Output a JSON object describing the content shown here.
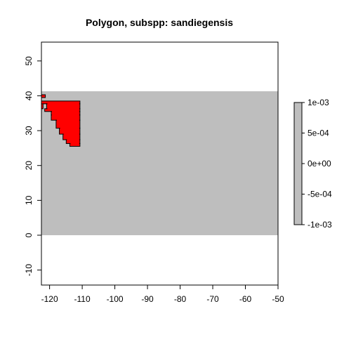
{
  "chart_data": {
    "type": "heatmap",
    "title": "Polygon, subspp: sandiegensis",
    "xlabel": "",
    "ylabel": "",
    "xlim": [
      -122.5,
      -50
    ],
    "ylim": [
      -14.3,
      55.4
    ],
    "x_ticks": [
      -120,
      -110,
      -100,
      -90,
      -80,
      -70,
      -60,
      -50
    ],
    "y_ticks": [
      -10,
      0,
      10,
      20,
      30,
      40,
      50
    ],
    "grid": false,
    "raster_extent": {
      "xmin": -122.5,
      "xmax": -50,
      "ymin": 0,
      "ymax": 41.3
    },
    "raster_background_color": "#bebebe",
    "presence_color": "#ff0000",
    "presence_outline_color": "#000000",
    "presence_cells": [
      [
        -122.5,
        39.5,
        -121.3,
        40.3
      ],
      [
        -122.5,
        37.7,
        -110.7,
        38.5
      ],
      [
        -122.5,
        36.3,
        -122.0,
        37.7
      ],
      [
        -120.9,
        36.3,
        -110.7,
        37.7
      ],
      [
        -121.5,
        35.5,
        -110.7,
        36.3
      ],
      [
        -119.5,
        34.5,
        -110.7,
        35.5
      ],
      [
        -119.5,
        33.0,
        -110.7,
        34.5
      ],
      [
        -118.0,
        30.7,
        -110.7,
        33.0
      ],
      [
        -117.0,
        29.0,
        -110.7,
        30.7
      ],
      [
        -115.9,
        27.4,
        -110.7,
        29.0
      ],
      [
        -114.9,
        26.3,
        -110.7,
        27.4
      ],
      [
        -113.8,
        25.5,
        -110.7,
        26.3
      ]
    ],
    "legend": {
      "position": "right",
      "colors": [
        "#bebebe"
      ],
      "range": [
        -0.001,
        0.001
      ],
      "tick_labels": [
        "1e-03",
        "5e-04",
        "0e+00",
        "-5e-04",
        "-1e-03"
      ],
      "tick_values": [
        0.001,
        0.0005,
        0,
        -0.0005,
        -0.001
      ]
    }
  }
}
